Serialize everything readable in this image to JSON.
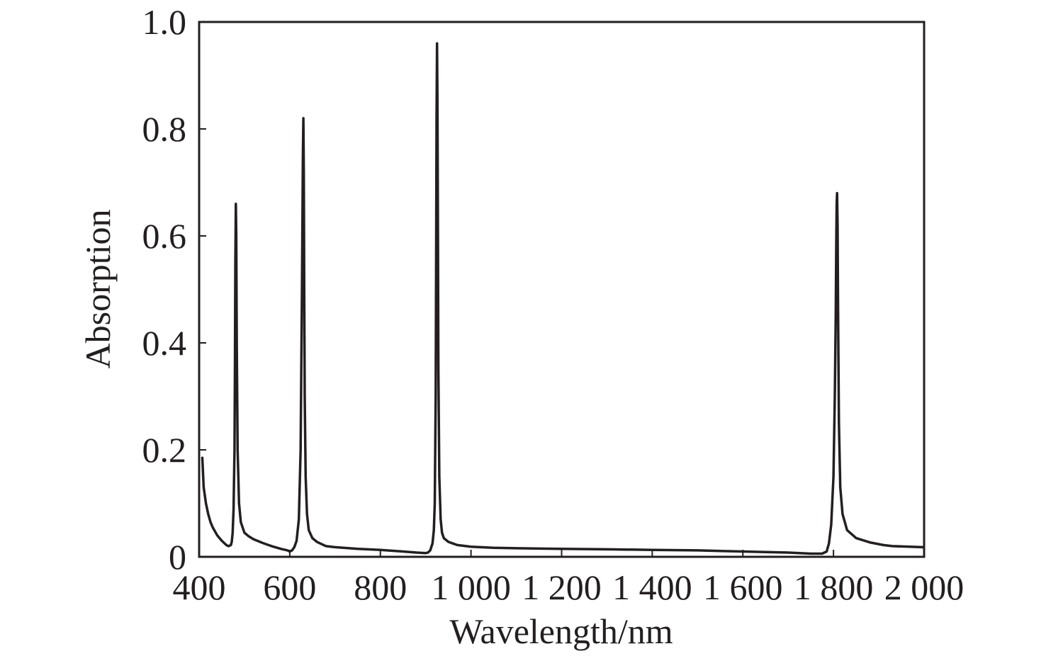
{
  "chart_data": {
    "type": "line",
    "xlabel": "Wavelength/nm",
    "ylabel": "Absorption",
    "xlim": [
      400,
      2000
    ],
    "ylim": [
      0,
      1.0
    ],
    "x_ticks": [
      400,
      600,
      800,
      1000,
      1200,
      1400,
      1600,
      1800,
      2000
    ],
    "x_tick_labels": [
      "400",
      "600",
      "800",
      "1 000",
      "1 200",
      "1 400",
      "1 600",
      "1 800",
      "2 000"
    ],
    "y_ticks": [
      0,
      0.2,
      0.4,
      0.6,
      0.8,
      1.0
    ],
    "y_tick_labels": [
      "0",
      "0.2",
      "0.4",
      "0.6",
      "0.8",
      "1.0"
    ],
    "grid": false,
    "line_color": "#231f20",
    "series": [
      {
        "x": [
          407,
          410,
          415,
          420,
          425,
          430,
          440,
          450,
          460,
          465,
          470,
          472,
          474,
          476,
          478,
          479,
          480,
          481,
          482,
          483,
          485,
          488,
          492,
          500,
          510,
          520,
          540,
          560,
          580,
          595,
          600,
          605,
          610,
          615,
          620,
          624,
          627,
          629,
          630,
          631,
          632,
          633,
          635,
          638,
          642,
          650,
          660,
          680,
          700,
          750,
          800,
          850,
          880,
          900,
          905,
          910,
          915,
          918,
          920,
          922,
          923,
          924,
          925,
          926,
          927,
          928,
          930,
          933,
          936,
          940,
          950,
          970,
          1000,
          1050,
          1100,
          1200,
          1300,
          1400,
          1500,
          1600,
          1700,
          1750,
          1775,
          1785,
          1790,
          1795,
          1800,
          1803,
          1805,
          1806,
          1807,
          1808,
          1809,
          1810,
          1812,
          1815,
          1820,
          1830,
          1850,
          1880,
          1910,
          1930,
          1997
        ],
        "y": [
          0.185,
          0.13,
          0.1,
          0.08,
          0.065,
          0.055,
          0.04,
          0.03,
          0.022,
          0.02,
          0.022,
          0.028,
          0.045,
          0.09,
          0.2,
          0.35,
          0.55,
          0.66,
          0.6,
          0.4,
          0.2,
          0.1,
          0.065,
          0.045,
          0.038,
          0.033,
          0.026,
          0.02,
          0.015,
          0.012,
          0.01,
          0.012,
          0.018,
          0.03,
          0.07,
          0.2,
          0.5,
          0.75,
          0.82,
          0.72,
          0.5,
          0.3,
          0.15,
          0.08,
          0.05,
          0.035,
          0.028,
          0.02,
          0.018,
          0.015,
          0.013,
          0.01,
          0.008,
          0.007,
          0.008,
          0.012,
          0.025,
          0.05,
          0.1,
          0.3,
          0.55,
          0.82,
          0.96,
          0.85,
          0.6,
          0.35,
          0.15,
          0.07,
          0.045,
          0.035,
          0.028,
          0.022,
          0.019,
          0.017,
          0.016,
          0.015,
          0.014,
          0.013,
          0.012,
          0.01,
          0.008,
          0.006,
          0.006,
          0.01,
          0.025,
          0.06,
          0.15,
          0.3,
          0.45,
          0.58,
          0.66,
          0.68,
          0.62,
          0.48,
          0.25,
          0.13,
          0.08,
          0.05,
          0.035,
          0.027,
          0.022,
          0.02,
          0.018
        ]
      }
    ]
  }
}
